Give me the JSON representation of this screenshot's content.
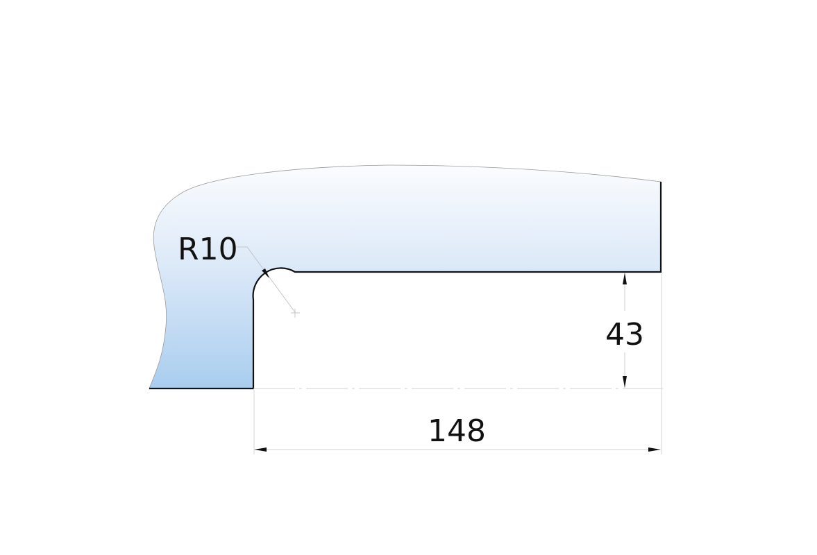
{
  "drawing": {
    "radius_label": "R10",
    "height_label": "43",
    "width_label": "148",
    "colors": {
      "fill_top": "#f7f9fd",
      "fill_bottom": "#a9cdef",
      "outline": "#111111",
      "dim_line": "#cfcfcf"
    }
  }
}
